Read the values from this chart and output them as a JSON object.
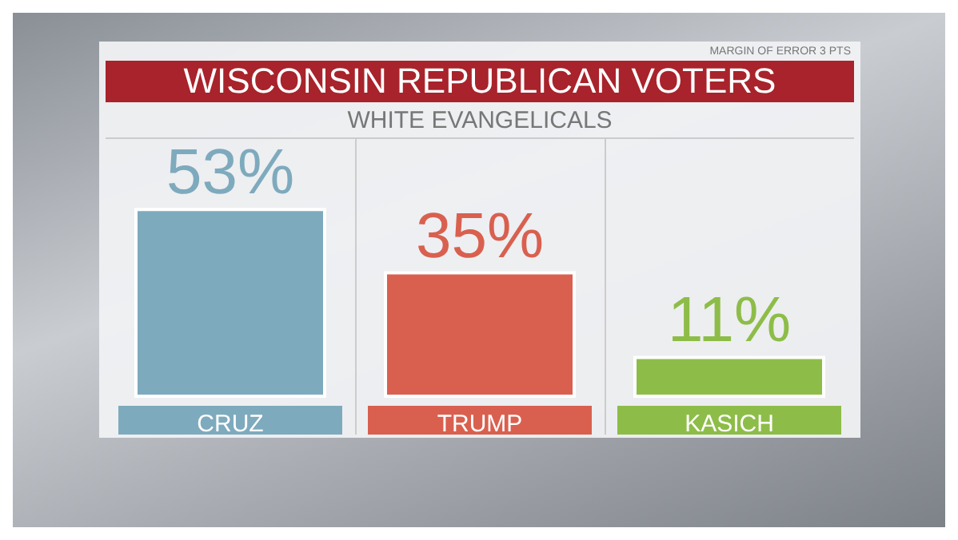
{
  "chart_data": {
    "type": "bar",
    "title": "WISCONSIN REPUBLICAN VOTERS",
    "subtitle": "WHITE EVANGELICALS",
    "categories": [
      "CRUZ",
      "TRUMP",
      "KASICH"
    ],
    "values": [
      53,
      35,
      11
    ],
    "colors": [
      "#7eaabd",
      "#d9604f",
      "#8dbd48"
    ],
    "value_labels": [
      "53%",
      "35%",
      "11%"
    ],
    "annotations": [
      "MARGIN OF ERROR 3 PTS"
    ]
  }
}
